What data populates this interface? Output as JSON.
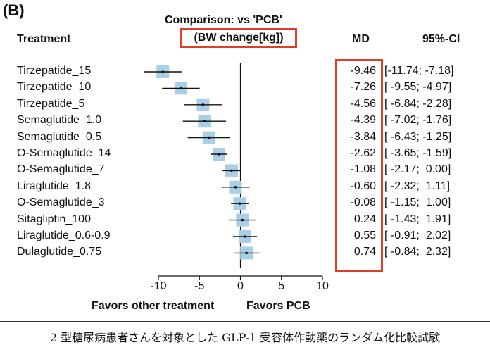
{
  "panel_label": "(B)",
  "header": {
    "treatment": "Treatment",
    "md": "MD",
    "ci": "95%-CI"
  },
  "caption": "2 型糖尿病患者さんを対象とした GLP-1 受容体作動薬のランダム化比較試験",
  "accent_color": "#d9412b",
  "marker_color": "#a9cfe6",
  "chart_data": {
    "type": "forest",
    "title": "Comparison: vs 'PCB'",
    "subtitle": "(BW change[kg])",
    "xlim": [
      -10,
      10
    ],
    "xticks": [
      "-10",
      "-5",
      "0",
      "5",
      "10"
    ],
    "xlabel_left": "Favors other treatment",
    "xlabel_right": "Favors PCB",
    "rows": [
      {
        "treatment": "Tirzepatide_15",
        "md": -9.46,
        "lo": -11.74,
        "hi": -7.18,
        "md_text": "-9.46",
        "ci_text": "[-11.74; -7.18]"
      },
      {
        "treatment": "Tirzepatide_10",
        "md": -7.26,
        "lo": -9.55,
        "hi": -4.97,
        "md_text": "-7.26",
        "ci_text": "[ -9.55; -4.97]"
      },
      {
        "treatment": "Tirzepatide_5",
        "md": -4.56,
        "lo": -6.84,
        "hi": -2.28,
        "md_text": "-4.56",
        "ci_text": "[ -6.84; -2.28]"
      },
      {
        "treatment": "Semaglutide_1.0",
        "md": -4.39,
        "lo": -7.02,
        "hi": -1.76,
        "md_text": "-4.39",
        "ci_text": "[ -7.02; -1.76]"
      },
      {
        "treatment": "Semaglutide_0.5",
        "md": -3.84,
        "lo": -6.43,
        "hi": -1.25,
        "md_text": "-3.84",
        "ci_text": "[ -6.43; -1.25]"
      },
      {
        "treatment": "O-Semaglutide_14",
        "md": -2.62,
        "lo": -3.65,
        "hi": -1.59,
        "md_text": "-2.62",
        "ci_text": "[ -3.65; -1.59]"
      },
      {
        "treatment": "O-Semaglutide_7",
        "md": -1.08,
        "lo": -2.17,
        "hi": 0.0,
        "md_text": "-1.08",
        "ci_text": "[ -2.17;  0.00]"
      },
      {
        "treatment": "Liraglutide_1.8",
        "md": -0.6,
        "lo": -2.32,
        "hi": 1.11,
        "md_text": "-0.60",
        "ci_text": "[ -2.32;  1.11]"
      },
      {
        "treatment": "O-Semaglutide_3",
        "md": -0.08,
        "lo": -1.15,
        "hi": 1.0,
        "md_text": "-0.08",
        "ci_text": "[ -1.15;  1.00]"
      },
      {
        "treatment": "Sitagliptin_100",
        "md": 0.24,
        "lo": -1.43,
        "hi": 1.91,
        "md_text": "0.24",
        "ci_text": "[ -1.43;  1.91]"
      },
      {
        "treatment": "Liraglutide_0.6-0.9",
        "md": 0.55,
        "lo": -0.91,
        "hi": 2.02,
        "md_text": "0.55",
        "ci_text": "[ -0.91;  2.02]"
      },
      {
        "treatment": "Dulaglutide_0.75",
        "md": 0.74,
        "lo": -0.84,
        "hi": 2.32,
        "md_text": "0.74",
        "ci_text": "[ -0.84;  2.32]"
      }
    ]
  }
}
